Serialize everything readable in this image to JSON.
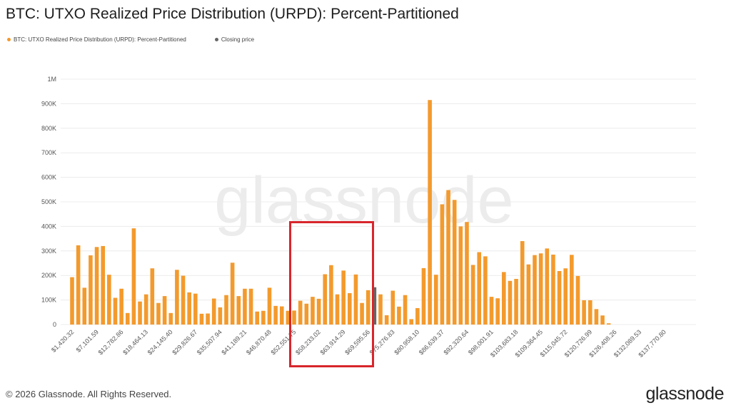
{
  "title": "BTC: UTXO Realized Price Distribution (URPD): Percent-Partitioned",
  "legend": [
    {
      "label": "BTC: UTXO Realized Price Distribution (URPD): Percent-Partitioned",
      "color": "#F39A2D"
    },
    {
      "label": "Closing price",
      "color": "#666666"
    }
  ],
  "watermark": "glassnode",
  "footer": {
    "copyright": "© 2026 Glassnode. All Rights Reserved.",
    "logo": "glassnode"
  },
  "chart_data": {
    "type": "bar",
    "title": "BTC: UTXO Realized Price Distribution (URPD): Percent-Partitioned",
    "xlabel": "",
    "ylabel": "",
    "ylim": [
      0,
      1000000
    ],
    "yticks": [
      "0",
      "100K",
      "200K",
      "300K",
      "400K",
      "500K",
      "600K",
      "700K",
      "800K",
      "900K",
      "1M"
    ],
    "bin_width_usd": 1420.32,
    "xtick_labels": [
      "$1,420.32",
      "$7,101.59",
      "$12,782.86",
      "$18,464.13",
      "$24,145.40",
      "$29,826.67",
      "$35,507.94",
      "$41,189.21",
      "$46,870.48",
      "$52,551.75",
      "$58,233.02",
      "$63,914.29",
      "$69,595.56",
      "$75,276.83",
      "$80,958.10",
      "$86,639.37",
      "$92,320.64",
      "$98,001.91",
      "$103,683.18",
      "$109,364.45",
      "$115,045.72",
      "$120,726.99",
      "$126,408.26",
      "$132,089.53",
      "$137,770.80"
    ],
    "grid": true,
    "legend_position": "top-left",
    "closing_price_bin_index": 49,
    "series": [
      {
        "name": "BTC: UTXO Realized Price Distribution (URPD): Percent-Partitioned",
        "color": "#F39A2D",
        "values": [
          193000,
          323000,
          150000,
          282000,
          316000,
          320000,
          203000,
          109000,
          146000,
          47000,
          392000,
          94000,
          123000,
          229000,
          88000,
          116000,
          47000,
          223000,
          199000,
          131000,
          126000,
          44000,
          45000,
          106000,
          70000,
          120000,
          252000,
          116000,
          146000,
          146000,
          53000,
          56000,
          150000,
          76000,
          74000,
          56000,
          57000,
          97000,
          85000,
          113000,
          105000,
          205000,
          242000,
          123000,
          220000,
          128000,
          204000,
          88000,
          140000,
          152000,
          123000,
          38000,
          138000,
          73000,
          120000,
          22000,
          67000,
          230000,
          915000,
          203000,
          490000,
          548000,
          508000,
          400000,
          418000,
          243000,
          295000,
          278000,
          113000,
          107000,
          214000,
          178000,
          186000,
          340000,
          245000,
          283000,
          290000,
          310000,
          285000,
          218000,
          229000,
          284000,
          198000,
          99000,
          99000,
          63000,
          37000,
          5000,
          0,
          0,
          0,
          0,
          0,
          0,
          0,
          0,
          0,
          0,
          0,
          0
        ]
      },
      {
        "name": "Closing price",
        "color": "#666666"
      }
    ]
  }
}
